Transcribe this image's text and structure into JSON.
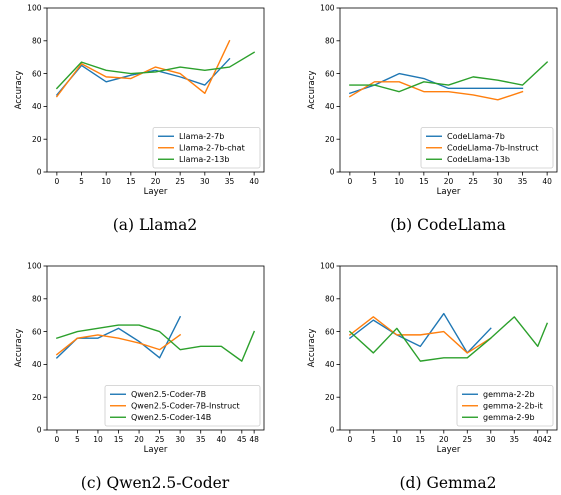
{
  "chart_data": [
    {
      "type": "line",
      "caption": "(a) Llama2",
      "xlabel": "Layer",
      "ylabel": "Accuracy",
      "xticks": [
        0,
        5,
        10,
        15,
        20,
        25,
        30,
        35,
        40
      ],
      "xlim": [
        -2,
        42
      ],
      "yticks": [
        0,
        20,
        40,
        60,
        80,
        100
      ],
      "ylim": [
        0,
        100
      ],
      "legend_position": "lower-right",
      "series": [
        {
          "name": "Llama-2-7b",
          "color": "#1f77b4",
          "x": [
            0,
            5,
            10,
            15,
            20,
            25,
            30,
            35
          ],
          "y": [
            47,
            65,
            55,
            59,
            62,
            58,
            53,
            69
          ]
        },
        {
          "name": "Llama-2-7b-chat",
          "color": "#ff7f0e",
          "x": [
            0,
            5,
            10,
            15,
            20,
            25,
            30,
            35
          ],
          "y": [
            46,
            66,
            58,
            57,
            64,
            60,
            48,
            80
          ]
        },
        {
          "name": "Llama-2-13b",
          "color": "#2ca02c",
          "x": [
            0,
            5,
            10,
            15,
            20,
            25,
            30,
            35,
            40
          ],
          "y": [
            51,
            67,
            62,
            60,
            61,
            64,
            62,
            64,
            73
          ]
        }
      ]
    },
    {
      "type": "line",
      "caption": "(b) CodeLlama",
      "xlabel": "Layer",
      "ylabel": "Accuracy",
      "xticks": [
        0,
        5,
        10,
        15,
        20,
        25,
        30,
        35,
        40
      ],
      "xlim": [
        -2,
        42
      ],
      "yticks": [
        0,
        20,
        40,
        60,
        80,
        100
      ],
      "ylim": [
        0,
        100
      ],
      "legend_position": "lower-right",
      "series": [
        {
          "name": "CodeLlama-7b",
          "color": "#1f77b4",
          "x": [
            0,
            5,
            10,
            15,
            20,
            25,
            30,
            35
          ],
          "y": [
            48,
            53,
            60,
            57,
            51,
            51,
            51,
            51
          ]
        },
        {
          "name": "CodeLlama-7b-Instruct",
          "color": "#ff7f0e",
          "x": [
            0,
            5,
            10,
            15,
            20,
            25,
            30,
            35
          ],
          "y": [
            46,
            55,
            55,
            49,
            49,
            47,
            44,
            49
          ]
        },
        {
          "name": "CodeLlama-13b",
          "color": "#2ca02c",
          "x": [
            0,
            5,
            10,
            15,
            20,
            25,
            30,
            35,
            40
          ],
          "y": [
            53,
            53,
            49,
            55,
            53,
            58,
            56,
            53,
            67
          ]
        }
      ]
    },
    {
      "type": "line",
      "caption": "(c) Qwen2.5-Coder",
      "xlabel": "Layer",
      "ylabel": "Accuracy",
      "xticks": [
        0,
        5,
        10,
        15,
        20,
        25,
        30,
        35,
        40,
        45,
        48
      ],
      "xlim": [
        -2.4,
        50.4
      ],
      "yticks": [
        0,
        20,
        40,
        60,
        80,
        100
      ],
      "ylim": [
        0,
        100
      ],
      "legend_position": "lower-right",
      "series": [
        {
          "name": "Qwen2.5-Coder-7B",
          "color": "#1f77b4",
          "x": [
            0,
            5,
            10,
            15,
            20,
            25,
            30
          ],
          "y": [
            44,
            56,
            56,
            62,
            54,
            44,
            69
          ]
        },
        {
          "name": "Qwen2.5-Coder-7B-Instruct",
          "color": "#ff7f0e",
          "x": [
            0,
            5,
            10,
            15,
            20,
            25,
            30
          ],
          "y": [
            46,
            56,
            58,
            56,
            53,
            49,
            58
          ]
        },
        {
          "name": "Qwen2.5-Coder-14B",
          "color": "#2ca02c",
          "x": [
            0,
            5,
            10,
            15,
            20,
            25,
            30,
            35,
            40,
            45,
            48
          ],
          "y": [
            56,
            60,
            62,
            64,
            64,
            60,
            49,
            51,
            51,
            42,
            60
          ]
        }
      ]
    },
    {
      "type": "line",
      "caption": "(d) Gemma2",
      "xlabel": "Layer",
      "ylabel": "Accuracy",
      "xticks": [
        0,
        5,
        10,
        15,
        20,
        25,
        30,
        35,
        40,
        42
      ],
      "xlim": [
        -2.1,
        44.1
      ],
      "yticks": [
        0,
        20,
        40,
        60,
        80,
        100
      ],
      "ylim": [
        0,
        100
      ],
      "legend_position": "lower-right",
      "series": [
        {
          "name": "gemma-2-2b",
          "color": "#1f77b4",
          "x": [
            0,
            5,
            10,
            15,
            20,
            25,
            30
          ],
          "y": [
            56,
            67,
            58,
            51,
            71,
            47,
            62
          ]
        },
        {
          "name": "gemma-2-2b-it",
          "color": "#ff7f0e",
          "x": [
            0,
            5,
            10,
            15,
            20,
            25,
            30
          ],
          "y": [
            58,
            69,
            58,
            58,
            60,
            47,
            56
          ]
        },
        {
          "name": "gemma-2-9b",
          "color": "#2ca02c",
          "x": [
            0,
            5,
            10,
            15,
            20,
            25,
            30,
            35,
            40,
            42
          ],
          "y": [
            60,
            47,
            62,
            42,
            44,
            44,
            56,
            69,
            51,
            65
          ]
        }
      ]
    }
  ]
}
